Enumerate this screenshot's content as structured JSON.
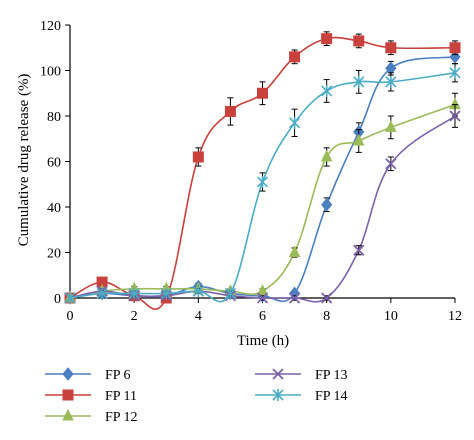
{
  "chart_data": {
    "type": "line",
    "xlabel": "Time (h)",
    "ylabel": "Cumulative drug release (%)",
    "xlim": [
      0,
      12
    ],
    "ylim": [
      0,
      120
    ],
    "xticks": [
      0,
      2,
      4,
      6,
      8,
      10,
      12
    ],
    "yticks": [
      0,
      20,
      40,
      60,
      80,
      100,
      120
    ],
    "grid": false,
    "legend_placement": "bottom",
    "series": [
      {
        "name": "FP 6",
        "color": "#4a7fc0",
        "marker": "diamond",
        "x": [
          0,
          1,
          2,
          3,
          4,
          5,
          6,
          7,
          8,
          9,
          10,
          12
        ],
        "y": [
          0,
          2,
          1,
          1,
          5,
          2,
          1,
          2,
          41,
          73,
          101,
          106
        ],
        "err": [
          0,
          1,
          1,
          1,
          1.5,
          1,
          1,
          1,
          3,
          4,
          3,
          3
        ]
      },
      {
        "name": "FP 11",
        "color": "#c9413d",
        "marker": "square",
        "x": [
          0,
          1,
          2,
          3,
          4,
          5,
          6,
          7,
          8,
          9,
          10,
          12
        ],
        "y": [
          0,
          7,
          1,
          0,
          62,
          82,
          90,
          106,
          114,
          113,
          110,
          110
        ],
        "err": [
          0,
          1,
          1,
          1,
          4,
          6,
          5,
          3,
          3,
          3,
          3,
          3
        ]
      },
      {
        "name": "FP 12",
        "color": "#9bbb59",
        "marker": "triangle",
        "x": [
          0,
          1,
          2,
          3,
          4,
          5,
          6,
          7,
          8,
          9,
          10,
          12
        ],
        "y": [
          0,
          3,
          4,
          4,
          4,
          3,
          3,
          20,
          62,
          69,
          75,
          85
        ],
        "err": [
          0,
          1,
          1,
          1,
          1,
          1,
          1,
          2,
          4,
          5,
          5,
          5
        ]
      },
      {
        "name": "FP 13",
        "color": "#7b61a8",
        "marker": "x",
        "x": [
          0,
          1,
          2,
          3,
          4,
          5,
          6,
          7,
          8,
          9,
          10,
          12
        ],
        "y": [
          0,
          3,
          1,
          1,
          3,
          1,
          0,
          0,
          0,
          21,
          59,
          80
        ],
        "err": [
          0,
          1,
          1,
          1,
          1,
          1,
          1,
          1,
          1,
          2,
          3,
          5
        ]
      },
      {
        "name": "FP 14",
        "color": "#4bacc6",
        "marker": "star",
        "x": [
          0,
          1,
          2,
          3,
          4,
          5,
          6,
          7,
          8,
          9,
          10,
          12
        ],
        "y": [
          0,
          2,
          2,
          2,
          3,
          2,
          51,
          77,
          91,
          95,
          95,
          99
        ],
        "err": [
          0,
          1,
          1,
          1,
          1,
          1,
          4,
          6,
          5,
          5,
          4,
          4
        ]
      }
    ]
  }
}
